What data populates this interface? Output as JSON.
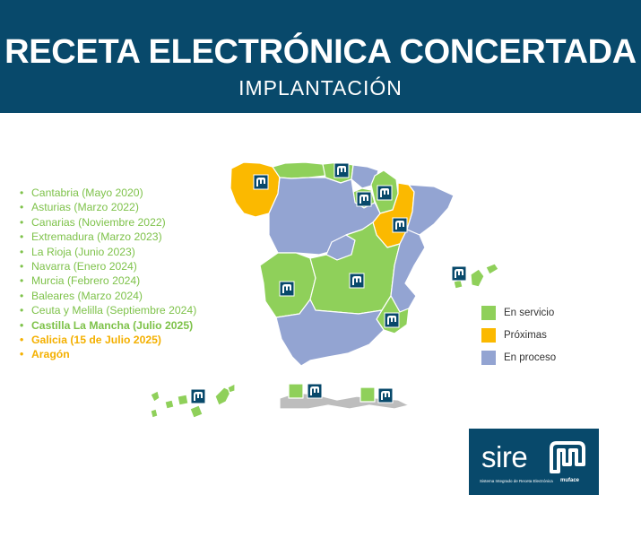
{
  "header": {
    "title": "RECETA ELECTRÓNICA CONCERTADA",
    "subtitle": "IMPLANTACIÓN"
  },
  "colors": {
    "header_bg": "#08496b",
    "en_servicio": "#8fd05a",
    "proximas": "#fbb900",
    "en_proceso": "#93a4d2",
    "list_green": "#7ec24a",
    "list_orange": "#f4b000",
    "other_land": "#bdbdbd",
    "marker_bg": "#08496b"
  },
  "implementation_list": [
    {
      "text": "Cantabria (Mayo 2020)",
      "status": "en_servicio",
      "bold": false
    },
    {
      "text": "Asturias (Marzo 2022)",
      "status": "en_servicio",
      "bold": false
    },
    {
      "text": "Canarias (Noviembre 2022)",
      "status": "en_servicio",
      "bold": false
    },
    {
      "text": "Extremadura (Marzo 2023)",
      "status": "en_servicio",
      "bold": false
    },
    {
      "text": "La Rioja (Junio 2023)",
      "status": "en_servicio",
      "bold": false
    },
    {
      "text": "Navarra (Enero 2024)",
      "status": "en_servicio",
      "bold": false
    },
    {
      "text": "Murcia (Febrero 2024)",
      "status": "en_servicio",
      "bold": false
    },
    {
      "text": "Baleares (Marzo 2024)",
      "status": "en_servicio",
      "bold": false
    },
    {
      "text": "Ceuta y Melilla (Septiembre 2024)",
      "status": "en_servicio",
      "bold": false
    },
    {
      "text": "Castilla La Mancha (Julio 2025)",
      "status": "en_servicio",
      "bold": true
    },
    {
      "text": "Galicia (15 de Julio 2025)",
      "status": "proximas",
      "bold": true
    },
    {
      "text": "Aragón",
      "status": "proximas",
      "bold": true
    }
  ],
  "legend": [
    {
      "label": "En servicio",
      "status": "en_servicio"
    },
    {
      "label": "Próximas",
      "status": "proximas"
    },
    {
      "label": "En proceso",
      "status": "en_proceso"
    }
  ],
  "map": {
    "regions": [
      {
        "name": "Galicia",
        "status": "proximas",
        "marker": true
      },
      {
        "name": "Asturias",
        "status": "en_servicio",
        "marker": false
      },
      {
        "name": "Cantabria",
        "status": "en_servicio",
        "marker": true
      },
      {
        "name": "País Vasco",
        "status": "en_proceso",
        "marker": false
      },
      {
        "name": "Navarra",
        "status": "en_servicio",
        "marker": true
      },
      {
        "name": "La Rioja",
        "status": "en_servicio",
        "marker": true
      },
      {
        "name": "Aragón",
        "status": "proximas",
        "marker": true
      },
      {
        "name": "Cataluña",
        "status": "en_proceso",
        "marker": false
      },
      {
        "name": "Castilla y León",
        "status": "en_proceso",
        "marker": false
      },
      {
        "name": "Madrid",
        "status": "en_proceso",
        "marker": false
      },
      {
        "name": "Extremadura",
        "status": "en_servicio",
        "marker": true
      },
      {
        "name": "Castilla La Mancha",
        "status": "en_servicio",
        "marker": true
      },
      {
        "name": "Comunidad Valenciana",
        "status": "en_proceso",
        "marker": false
      },
      {
        "name": "Murcia",
        "status": "en_servicio",
        "marker": true
      },
      {
        "name": "Andalucía",
        "status": "en_proceso",
        "marker": false
      },
      {
        "name": "Baleares",
        "status": "en_servicio",
        "marker": true
      },
      {
        "name": "Canarias",
        "status": "en_servicio",
        "marker": true
      },
      {
        "name": "Ceuta",
        "status": "en_servicio",
        "marker": true
      },
      {
        "name": "Melilla",
        "status": "en_servicio",
        "marker": true
      }
    ]
  },
  "logo": {
    "word": "sire",
    "tagline": "Sistema Integrado de Receta Electrónica",
    "brand": "muface"
  }
}
